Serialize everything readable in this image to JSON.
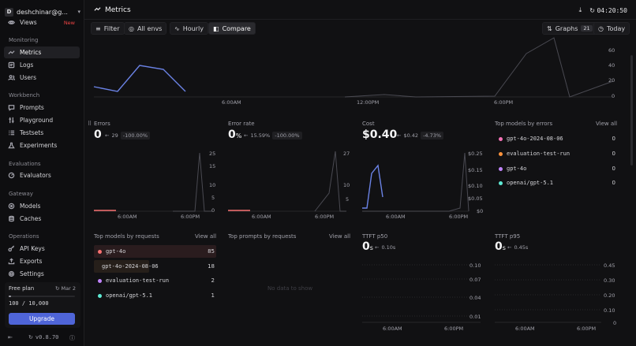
{
  "sidebar": {
    "workspace_initial": "D",
    "workspace_name": "deshchinar@g...",
    "views": {
      "label": "Views",
      "badge": "New"
    },
    "sections": [
      {
        "title": "Monitoring",
        "items": [
          {
            "label": "Metrics",
            "icon": "trend-icon",
            "active": true
          },
          {
            "label": "Logs",
            "icon": "logs-icon"
          },
          {
            "label": "Users",
            "icon": "users-icon"
          }
        ]
      },
      {
        "title": "Workbench",
        "items": [
          {
            "label": "Prompts",
            "icon": "chat-icon"
          },
          {
            "label": "Playground",
            "icon": "sliders-icon"
          },
          {
            "label": "Testsets",
            "icon": "list-icon"
          },
          {
            "label": "Experiments",
            "icon": "flask-icon"
          }
        ]
      },
      {
        "title": "Evaluations",
        "items": [
          {
            "label": "Evaluators",
            "icon": "gauge-icon"
          }
        ]
      },
      {
        "title": "Gateway",
        "items": [
          {
            "label": "Models",
            "icon": "cube-icon"
          },
          {
            "label": "Caches",
            "icon": "database-icon"
          }
        ]
      },
      {
        "title": "Operations",
        "items": [
          {
            "label": "API Keys",
            "icon": "key-icon"
          },
          {
            "label": "Exports",
            "icon": "export-icon"
          },
          {
            "label": "Settings",
            "icon": "gear-icon"
          }
        ]
      }
    ],
    "plan": {
      "title": "Free plan",
      "reset": "Mar 2",
      "usage": "100 / 10,000",
      "usage_fraction": 0.01,
      "upgrade": "Upgrade"
    },
    "version": "v0.8.70"
  },
  "header": {
    "title": "Metrics",
    "timer": "04:20:50"
  },
  "toolbar": {
    "filter": "Filter",
    "envs": "All envs",
    "interval": "Hourly",
    "compare": "Compare",
    "graphs": "Graphs",
    "graphs_count": "21",
    "range": "Today"
  },
  "top_chart": {
    "x_ticks": [
      "6:00AM",
      "12:00PM",
      "6:00PM"
    ],
    "y_ticks": [
      "60",
      "40",
      "20",
      "0"
    ]
  },
  "errors": {
    "label": "Errors",
    "value": "0",
    "prev": "29",
    "pct": "-100.00%",
    "y_ticks": [
      "25",
      "15",
      "10",
      "5",
      "0"
    ],
    "x_ticks": [
      "6:00AM",
      "6:00PM"
    ]
  },
  "error_rate": {
    "label": "Error rate",
    "value": "0",
    "unit": "%",
    "prev": "15.59%",
    "pct": "-100.00%",
    "y_ticks": [
      "27",
      "10",
      "5"
    ],
    "x_ticks": [
      "6:00AM",
      "6:00PM"
    ]
  },
  "cost": {
    "label": "Cost",
    "value": "$0.40",
    "prev": "$0.42",
    "pct": "-4.73%",
    "y_ticks": [
      "$0.25",
      "$0.15",
      "$0.10",
      "$0.05",
      "$0"
    ],
    "x_ticks": [
      "6:00AM",
      "6:00PM"
    ]
  },
  "top_models_errors": {
    "label": "Top models by errors",
    "view_all": "View all",
    "rows": [
      {
        "name": "gpt-4o-2024-08-06",
        "value": "0",
        "color": "#f472b6"
      },
      {
        "name": "evaluation-test-run",
        "value": "0",
        "color": "#fb923c"
      },
      {
        "name": "gpt-4o",
        "value": "0",
        "color": "#c084fc"
      },
      {
        "name": "openai/gpt-5.1",
        "value": "0",
        "color": "#5eead4"
      }
    ]
  },
  "top_models_requests": {
    "label": "Top models by requests",
    "view_all": "View all",
    "rows": [
      {
        "name": "gpt-4o",
        "value": "85",
        "color": "#f87171"
      },
      {
        "name": "gpt-4o-2024-08-06",
        "value": "18",
        "color": "#fb923c"
      },
      {
        "name": "evaluation-test-run",
        "value": "2",
        "color": "#c084fc"
      },
      {
        "name": "openai/gpt-5.1",
        "value": "1",
        "color": "#5eead4"
      }
    ]
  },
  "top_prompts": {
    "label": "Top prompts by requests",
    "view_all": "View all",
    "empty": "No data to show"
  },
  "ttft_p50": {
    "label": "TTFT p50",
    "value": "0",
    "unit": "s",
    "prev": "0.10s",
    "y_ticks": [
      "0.10",
      "0.07",
      "0.04",
      "0.01"
    ],
    "x_ticks": [
      "6:00AM",
      "6:00PM"
    ]
  },
  "ttft_p95": {
    "label": "TTFT p95",
    "value": "0",
    "unit": "s",
    "prev": "0.45s",
    "y_ticks": [
      "0.45",
      "0.30",
      "0.20",
      "0.10",
      "0"
    ],
    "x_ticks": [
      "6:00AM",
      "6:00PM"
    ]
  }
}
